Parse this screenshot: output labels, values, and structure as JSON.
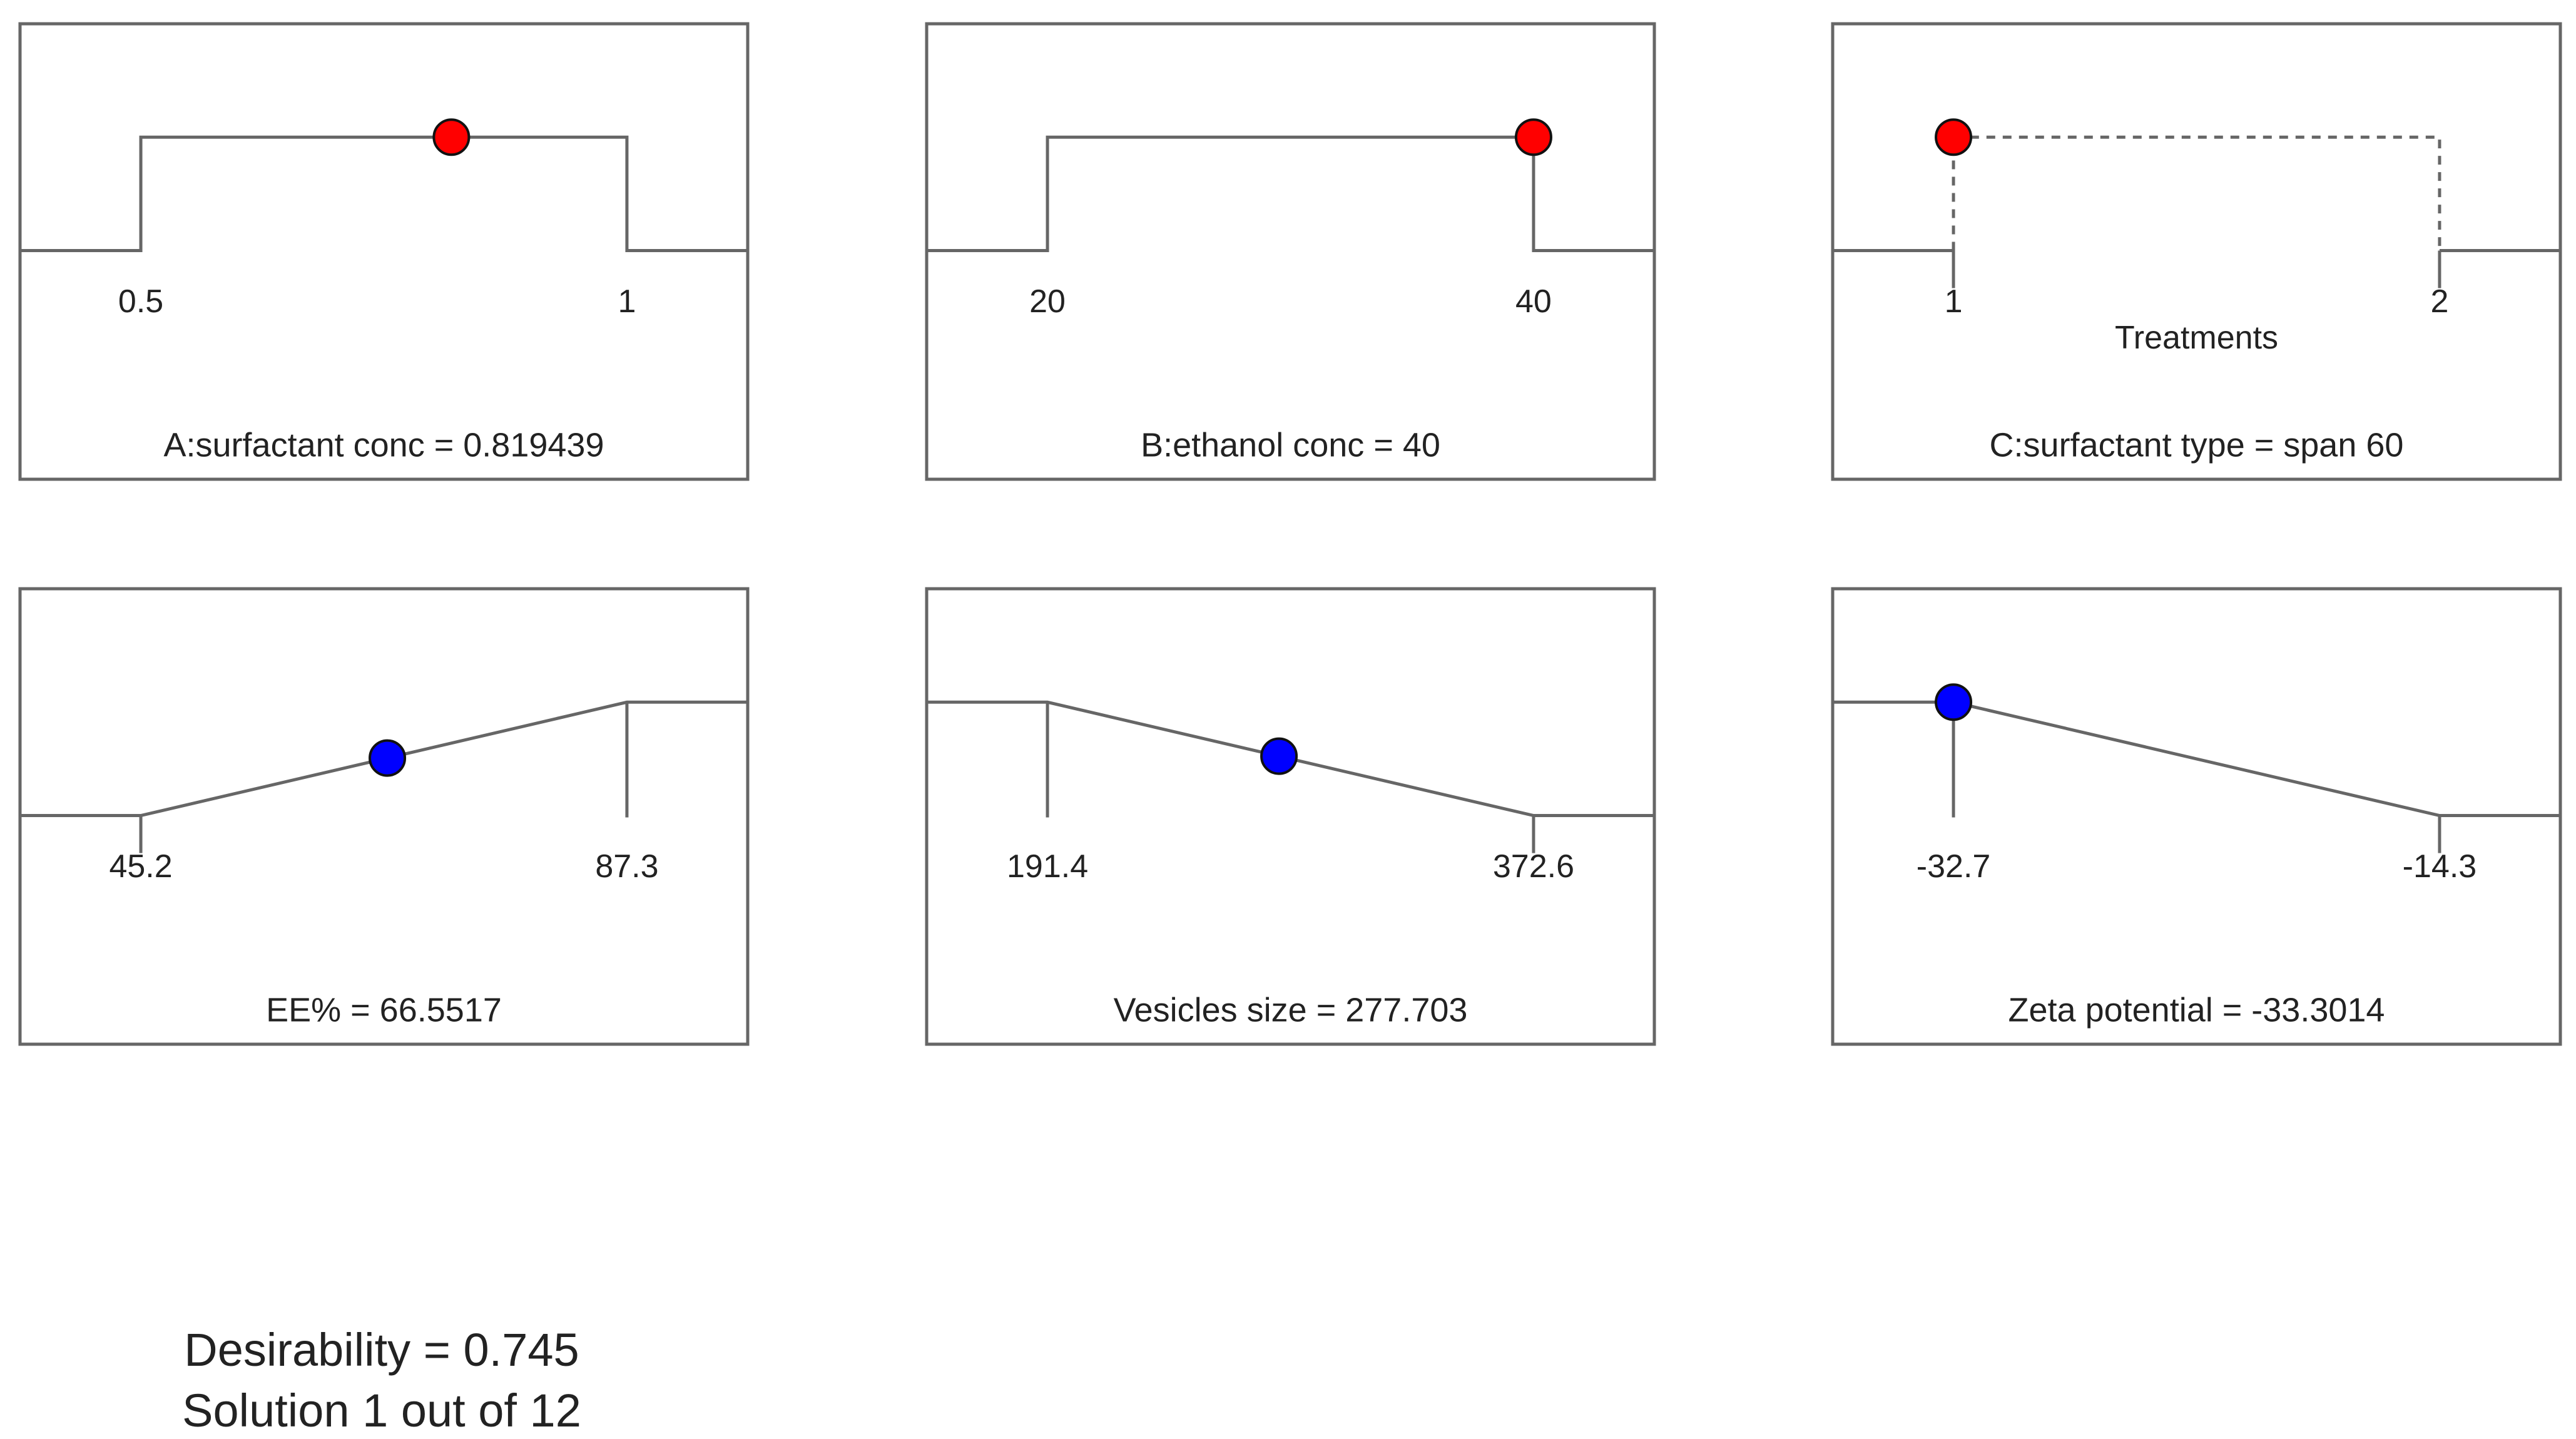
{
  "chart_data": [
    {
      "type": "desirability-ramp",
      "kind": "factor",
      "caption": "A:surfactant conc = 0.819439",
      "low_label": "0.5",
      "high_label": "1",
      "low": 0.5,
      "high": 1,
      "value": 0.819439,
      "marker_color": "#ff0000",
      "line_style": "solid",
      "shape": "plateau"
    },
    {
      "type": "desirability-ramp",
      "kind": "factor",
      "caption": "B:ethanol conc = 40",
      "low_label": "20",
      "high_label": "40",
      "low": 20,
      "high": 40,
      "value": 40,
      "marker_color": "#ff0000",
      "line_style": "solid",
      "shape": "plateau"
    },
    {
      "type": "desirability-ramp",
      "kind": "factor",
      "caption": "C:surfactant type = span 60",
      "low_label": "1",
      "high_label": "2",
      "low": 1,
      "high": 2,
      "value": 1,
      "axis_title": "Treatments",
      "marker_color": "#ff0000",
      "line_style": "dashed",
      "shape": "plateau"
    },
    {
      "type": "desirability-ramp",
      "kind": "response",
      "caption": "EE% = 66.5517",
      "low_label": "45.2",
      "high_label": "87.3",
      "low": 45.2,
      "high": 87.3,
      "value": 66.5517,
      "marker_color": "#0000ff",
      "line_style": "solid",
      "shape": "maximize"
    },
    {
      "type": "desirability-ramp",
      "kind": "response",
      "caption": "Vesicles size = 277.703",
      "low_label": "191.4",
      "high_label": "372.6",
      "low": 191.4,
      "high": 372.6,
      "value": 277.703,
      "marker_color": "#0000ff",
      "line_style": "solid",
      "shape": "minimize"
    },
    {
      "type": "desirability-ramp",
      "kind": "response",
      "caption": "Zeta potential = -33.3014",
      "low_label": "-32.7",
      "high_label": "-14.3",
      "low": -32.7,
      "high": -14.3,
      "value": -33.3014,
      "marker_color": "#0000ff",
      "line_style": "solid",
      "shape": "minimize"
    }
  ],
  "footer": {
    "desirability": "Desirability = 0.745",
    "solution": "Solution 1 out of 12"
  }
}
